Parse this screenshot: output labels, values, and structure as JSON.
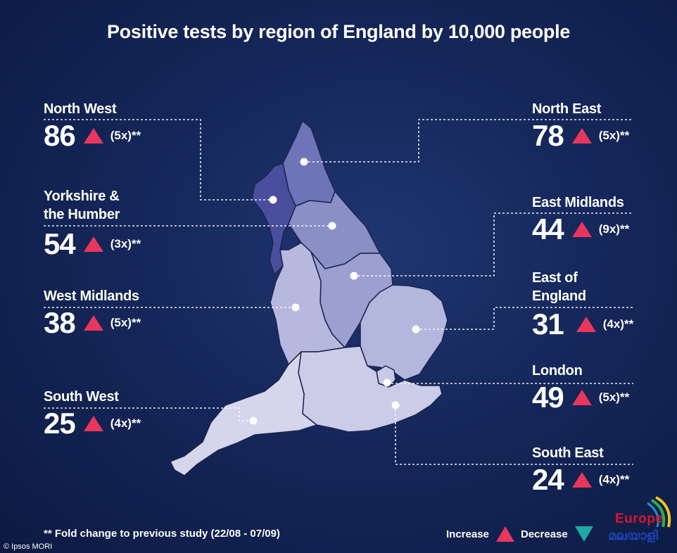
{
  "title": "Positive tests by region of England by 10,000 people",
  "regions": [
    {
      "name": "North West",
      "value": "86",
      "fold": "(5x)**",
      "trend": "increase"
    },
    {
      "name": "Yorkshire &",
      "name2": "the Humber",
      "value": "54",
      "fold": "(3x)**",
      "trend": "increase"
    },
    {
      "name": "West Midlands",
      "value": "38",
      "fold": "(5x)**",
      "trend": "increase"
    },
    {
      "name": "South West",
      "value": "25",
      "fold": "(4x)**",
      "trend": "increase"
    },
    {
      "name": "North East",
      "value": "78",
      "fold": "(5x)**",
      "trend": "increase"
    },
    {
      "name": "East Midlands",
      "value": "44",
      "fold": "(9x)**",
      "trend": "increase"
    },
    {
      "name": "East of",
      "name2": "England",
      "value": "31",
      "fold": "(4x)**",
      "trend": "increase"
    },
    {
      "name": "London",
      "value": "49",
      "fold": "(5x)**",
      "trend": "increase"
    },
    {
      "name": "South East",
      "value": "24",
      "fold": "(4x)**",
      "trend": "increase"
    }
  ],
  "footnote": "** Fold change to previous study (22/08 - 07/09)",
  "credit": "© Ipsos MORI",
  "legend": {
    "increase": "Increase",
    "decrease": "Decrease"
  },
  "logo": {
    "word": "Europe",
    "script": "മലയാളി"
  },
  "colors": {
    "increase": "#e8365d",
    "decrease": "#1fa9a6"
  }
}
